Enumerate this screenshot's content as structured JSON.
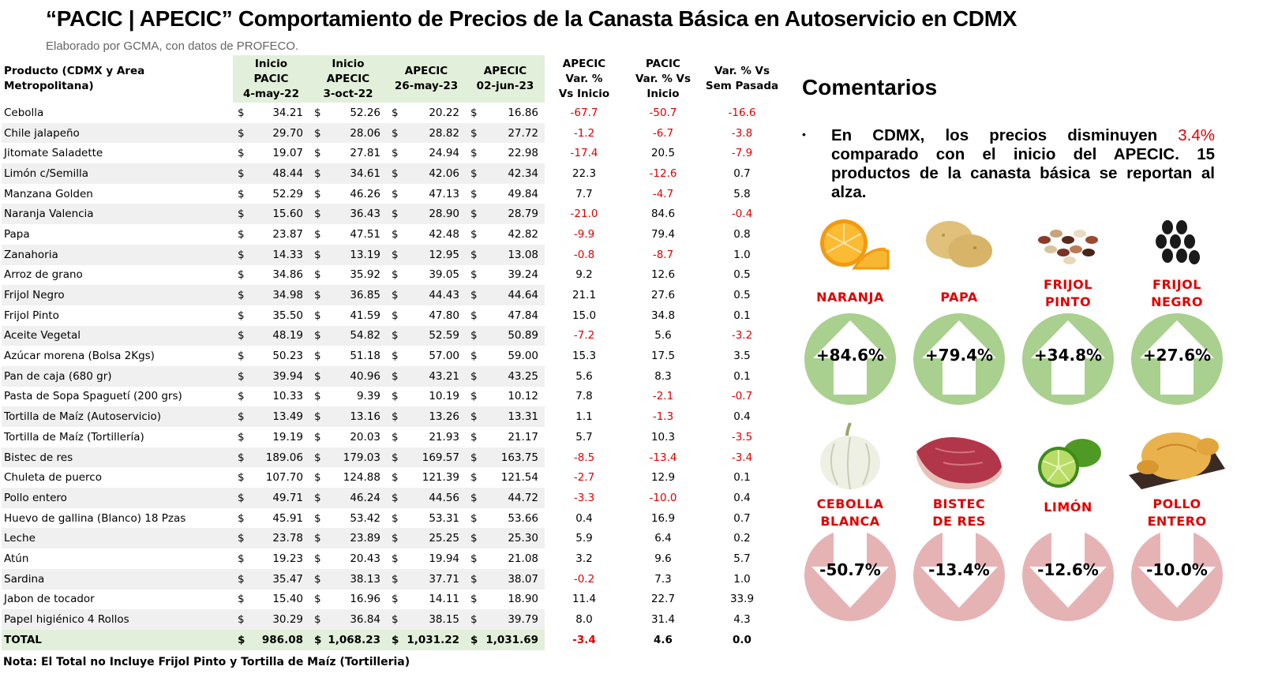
{
  "title": "“PACIC | APECIC” Comportamiento de Precios de la Canasta Básica en Autoservicio en CDMX",
  "subtitle": "Elaborado por GCMA, con datos de PROFECO.",
  "table": {
    "headers": {
      "product": "Producto (CDMX y Area Metropolitana)",
      "c1": [
        "Inicio",
        "PACIC",
        "4-may-22"
      ],
      "c2": [
        "Inicio",
        "APECIC",
        "3-oct-22"
      ],
      "c3": [
        "APECIC",
        "26-may-23"
      ],
      "c4": [
        "APECIC",
        "02-jun-23"
      ],
      "v1": [
        "APECIC",
        "Var. %",
        "Vs  Inicio"
      ],
      "v2": [
        "PACIC",
        "Var. % Vs",
        "Inicio"
      ],
      "v3": [
        "Var. % Vs",
        "Sem Pasada"
      ]
    },
    "currency": "$",
    "rows": [
      {
        "name": "Cebolla",
        "p1": "34.21",
        "p2": "52.26",
        "p3": "20.22",
        "p4": "16.86",
        "v1": "-67.7",
        "v2": "-50.7",
        "v3": "-16.6"
      },
      {
        "name": "Chile jalapeño",
        "p1": "29.70",
        "p2": "28.06",
        "p3": "28.82",
        "p4": "27.72",
        "v1": "-1.2",
        "v2": "-6.7",
        "v3": "-3.8"
      },
      {
        "name": "Jitomate Saladette",
        "p1": "19.07",
        "p2": "27.81",
        "p3": "24.94",
        "p4": "22.98",
        "v1": "-17.4",
        "v2": "20.5",
        "v3": "-7.9"
      },
      {
        "name": "Limón c/Semilla",
        "p1": "48.44",
        "p2": "34.61",
        "p3": "42.06",
        "p4": "42.34",
        "v1": "22.3",
        "v2": "-12.6",
        "v3": "0.7"
      },
      {
        "name": "Manzana Golden",
        "p1": "52.29",
        "p2": "46.26",
        "p3": "47.13",
        "p4": "49.84",
        "v1": "7.7",
        "v2": "-4.7",
        "v3": "5.8"
      },
      {
        "name": "Naranja Valencia",
        "p1": "15.60",
        "p2": "36.43",
        "p3": "28.90",
        "p4": "28.79",
        "v1": "-21.0",
        "v2": "84.6",
        "v3": "-0.4"
      },
      {
        "name": "Papa",
        "p1": "23.87",
        "p2": "47.51",
        "p3": "42.48",
        "p4": "42.82",
        "v1": "-9.9",
        "v2": "79.4",
        "v3": "0.8"
      },
      {
        "name": "Zanahoria",
        "p1": "14.33",
        "p2": "13.19",
        "p3": "12.95",
        "p4": "13.08",
        "v1": "-0.8",
        "v2": "-8.7",
        "v3": "1.0"
      },
      {
        "name": "Arroz de grano",
        "p1": "34.86",
        "p2": "35.92",
        "p3": "39.05",
        "p4": "39.24",
        "v1": "9.2",
        "v2": "12.6",
        "v3": "0.5"
      },
      {
        "name": "Frijol Negro",
        "p1": "34.98",
        "p2": "36.85",
        "p3": "44.43",
        "p4": "44.64",
        "v1": "21.1",
        "v2": "27.6",
        "v3": "0.5"
      },
      {
        "name": "Frijol Pinto",
        "p1": "35.50",
        "p2": "41.59",
        "p3": "47.80",
        "p4": "47.84",
        "v1": "15.0",
        "v2": "34.8",
        "v3": "0.1"
      },
      {
        "name": "Aceite Vegetal",
        "p1": "48.19",
        "p2": "54.82",
        "p3": "52.59",
        "p4": "50.89",
        "v1": "-7.2",
        "v2": "5.6",
        "v3": "-3.2"
      },
      {
        "name": "Azúcar morena (Bolsa 2Kgs)",
        "p1": "50.23",
        "p2": "51.18",
        "p3": "57.00",
        "p4": "59.00",
        "v1": "15.3",
        "v2": "17.5",
        "v3": "3.5"
      },
      {
        "name": "Pan de caja (680 gr)",
        "p1": "39.94",
        "p2": "40.96",
        "p3": "43.21",
        "p4": "43.25",
        "v1": "5.6",
        "v2": "8.3",
        "v3": "0.1"
      },
      {
        "name": "Pasta de Sopa Spaguetí (200 grs)",
        "p1": "10.33",
        "p2": "9.39",
        "p3": "10.19",
        "p4": "10.12",
        "v1": "7.8",
        "v2": "-2.1",
        "v3": "-0.7"
      },
      {
        "name": "Tortilla de Maíz (Autoservicio)",
        "p1": "13.49",
        "p2": "13.16",
        "p3": "13.26",
        "p4": "13.31",
        "v1": "1.1",
        "v2": "-1.3",
        "v3": "0.4"
      },
      {
        "name": "Tortilla de Maíz (Tortillería)",
        "p1": "19.19",
        "p2": "20.03",
        "p3": "21.93",
        "p4": "21.17",
        "v1": "5.7",
        "v2": "10.3",
        "v3": "-3.5"
      },
      {
        "name": "Bistec de res",
        "p1": "189.06",
        "p2": "179.03",
        "p3": "169.57",
        "p4": "163.75",
        "v1": "-8.5",
        "v2": "-13.4",
        "v3": "-3.4"
      },
      {
        "name": "Chuleta de puerco",
        "p1": "107.70",
        "p2": "124.88",
        "p3": "121.39",
        "p4": "121.54",
        "v1": "-2.7",
        "v2": "12.9",
        "v3": "0.1"
      },
      {
        "name": "Pollo entero",
        "p1": "49.71",
        "p2": "46.24",
        "p3": "44.56",
        "p4": "44.72",
        "v1": "-3.3",
        "v2": "-10.0",
        "v3": "0.4"
      },
      {
        "name": "Huevo de gallina (Blanco) 18 Pzas",
        "p1": "45.91",
        "p2": "53.42",
        "p3": "53.31",
        "p4": "53.66",
        "v1": "0.4",
        "v2": "16.9",
        "v3": "0.7"
      },
      {
        "name": "Leche",
        "p1": "23.78",
        "p2": "23.89",
        "p3": "25.25",
        "p4": "25.30",
        "v1": "5.9",
        "v2": "6.4",
        "v3": "0.2"
      },
      {
        "name": "Atún",
        "p1": "19.23",
        "p2": "20.43",
        "p3": "19.94",
        "p4": "21.08",
        "v1": "3.2",
        "v2": "9.6",
        "v3": "5.7"
      },
      {
        "name": "Sardina",
        "p1": "35.47",
        "p2": "38.13",
        "p3": "37.71",
        "p4": "38.07",
        "v1": "-0.2",
        "v2": "7.3",
        "v3": "1.0"
      },
      {
        "name": "Jabon de tocador",
        "p1": "15.40",
        "p2": "16.96",
        "p3": "14.11",
        "p4": "18.90",
        "v1": "11.4",
        "v2": "22.7",
        "v3": "33.9"
      },
      {
        "name": "Papel higiénico 4 Rollos",
        "p1": "30.29",
        "p2": "36.84",
        "p3": "38.15",
        "p4": "39.79",
        "v1": "8.0",
        "v2": "31.4",
        "v3": "4.3"
      }
    ],
    "total": {
      "name": "TOTAL",
      "p1": "986.08",
      "p2": "1,068.23",
      "p3": "1,031.22",
      "p4": "1,031.69",
      "v1": "-3.4",
      "v2": "4.6",
      "v3": "0.0"
    }
  },
  "note": "Nota: El Total no Incluye Frijol Pinto y Tortilla de Maíz (Tortilleria)",
  "comments": {
    "title": "Comentarios",
    "bullet": "•",
    "text_a": "En CDMX, los precios disminuyen ",
    "highlight": "3.4%",
    "text_b": " comparado con el inicio del APECIC. 15 productos de la canasta básica se reportan al alza."
  },
  "colors": {
    "up": "#a9d08e",
    "down": "#e6b3b5",
    "red": "#e00000",
    "header_green": "#e2efda"
  },
  "highlights_up": [
    {
      "label": [
        "NARANJA"
      ],
      "value": "+84.6%",
      "icon": "orange-icon"
    },
    {
      "label": [
        "PAPA"
      ],
      "value": "+79.4%",
      "icon": "potato-icon"
    },
    {
      "label": [
        "FRIJOL",
        "PINTO"
      ],
      "value": "+34.8%",
      "icon": "pinto-beans-icon"
    },
    {
      "label": [
        "FRIJOL",
        "NEGRO"
      ],
      "value": "+27.6%",
      "icon": "black-beans-icon"
    }
  ],
  "highlights_down": [
    {
      "label": [
        "CEBOLLA",
        "BLANCA"
      ],
      "value": "-50.7%",
      "icon": "onion-icon"
    },
    {
      "label": [
        "BISTEC",
        "DE RES"
      ],
      "value": "-13.4%",
      "icon": "beef-icon"
    },
    {
      "label": [
        "LIMÓN"
      ],
      "value": "-12.6%",
      "icon": "lime-icon"
    },
    {
      "label": [
        "POLLO",
        "ENTERO"
      ],
      "value": "-10.0%",
      "icon": "chicken-icon"
    }
  ]
}
